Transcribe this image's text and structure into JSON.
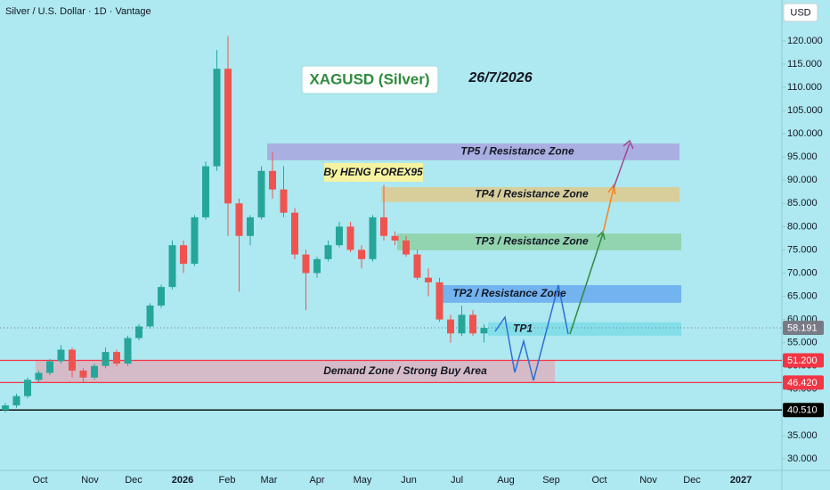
{
  "chart_data": {
    "type": "candlestick",
    "header": "Silver / U.S. Dollar · 1D · Vantage",
    "currency": "USD",
    "title": "XAGUSD (Silver)",
    "date_note": "26/7/2026",
    "author": "By HENG FOREX95",
    "x_labels": [
      "Oct",
      "Nov",
      "Dec",
      "2026",
      "Feb",
      "Mar",
      "Apr",
      "May",
      "Jun",
      "Jul",
      "Aug",
      "Sep",
      "Oct",
      "Nov",
      "Dec",
      "2027"
    ],
    "open": [
      40.5,
      41.5,
      43.5,
      47,
      48.5,
      51,
      53.5,
      49,
      47.5,
      50,
      53,
      50.5,
      56,
      58.5,
      63,
      67,
      76,
      72,
      82,
      93,
      114,
      85,
      78,
      82,
      92,
      88,
      83,
      74,
      70,
      73,
      76,
      80,
      75,
      73,
      82,
      78,
      77,
      74,
      69,
      68,
      60,
      57,
      61,
      57
    ],
    "high": [
      42,
      44,
      47.5,
      49,
      51.5,
      54.5,
      54,
      49.5,
      50.5,
      54,
      53.5,
      56.5,
      59,
      63.5,
      67.5,
      77,
      77,
      82.5,
      94,
      118,
      121,
      86,
      82.5,
      93,
      96,
      93,
      84,
      75,
      73.5,
      77,
      81,
      81,
      76,
      82.5,
      89,
      79,
      78,
      75,
      71,
      69,
      61,
      63,
      62,
      59
    ],
    "low": [
      40,
      41,
      43,
      46.5,
      48,
      50.5,
      47.5,
      46.5,
      47,
      49.5,
      50,
      50,
      55.5,
      58,
      62.5,
      66.5,
      70,
      71.5,
      81.5,
      92,
      78,
      66,
      76,
      81.5,
      86,
      82,
      73,
      62,
      69,
      72.5,
      75.5,
      74.5,
      71,
      72.5,
      77,
      76,
      73.5,
      68.5,
      65,
      59.5,
      55,
      56.5,
      56.5,
      55
    ],
    "close": [
      41.5,
      43.5,
      47,
      48.5,
      51,
      53.5,
      49,
      47.5,
      50,
      53,
      50.5,
      56,
      58.5,
      63,
      67,
      76,
      72,
      82,
      93,
      114,
      85,
      78,
      82,
      92,
      88,
      83,
      74,
      70,
      73,
      76,
      80,
      75,
      73,
      82,
      78,
      77,
      74,
      69,
      68,
      60,
      57,
      61,
      57,
      58.191
    ],
    "up_color": "#26a69a",
    "down_color": "#ef5350",
    "ylim": [
      27.5,
      128.8
    ],
    "yticks": [
      {
        "value": 120,
        "label": "120.000"
      },
      {
        "value": 115,
        "label": "115.000"
      },
      {
        "value": 110,
        "label": "110.000"
      },
      {
        "value": 105,
        "label": "105.000"
      },
      {
        "value": 100,
        "label": "100.000"
      },
      {
        "value": 95,
        "label": "95.000"
      },
      {
        "value": 90,
        "label": "90.000"
      },
      {
        "value": 85,
        "label": "85.000"
      },
      {
        "value": 80,
        "label": "80.000"
      },
      {
        "value": 75,
        "label": "75.000"
      },
      {
        "value": 70,
        "label": "70.000"
      },
      {
        "value": 65,
        "label": "65.000"
      },
      {
        "value": 60,
        "label": "60.000"
      },
      {
        "value": 55,
        "label": "55.000"
      },
      {
        "value": 50,
        "label": "50.000"
      },
      {
        "value": 45,
        "label": "45.000"
      },
      {
        "value": 40,
        "label": "40.000"
      },
      {
        "value": 35,
        "label": "35.000"
      },
      {
        "value": 30,
        "label": "30.000"
      }
    ],
    "zones": [
      {
        "label": "TP5 / Resistance Zone",
        "top": 97.9,
        "bottom": 94.3,
        "color": "#aaa8e0"
      },
      {
        "label": "TP4 / Resistance Zone",
        "top": 88.5,
        "bottom": 85.3,
        "color": "#dccb92"
      },
      {
        "label": "TP3 / Resistance Zone",
        "top": 78.5,
        "bottom": 74.9,
        "color": "#8fd1a8"
      },
      {
        "label": "TP2 / Resistance Zone",
        "top": 67.4,
        "bottom": 63.6,
        "color": "#6badf0"
      },
      {
        "label": "TP1",
        "top": 59.4,
        "bottom": 56.5,
        "color": "#80dde8"
      },
      {
        "label": "Demand Zone / Strong Buy Area",
        "top": 51.2,
        "bottom": 46.42,
        "color": "#d9b6c2"
      }
    ],
    "levels": [
      {
        "value": 58.191,
        "label": "58.191",
        "color": "#787b86"
      },
      {
        "value": 51.2,
        "label": "51.200",
        "color": "#f23645"
      },
      {
        "value": 46.42,
        "label": "46.420",
        "color": "#f23645"
      },
      {
        "value": 40.51,
        "label": "40.510",
        "color": "#000000"
      }
    ]
  }
}
